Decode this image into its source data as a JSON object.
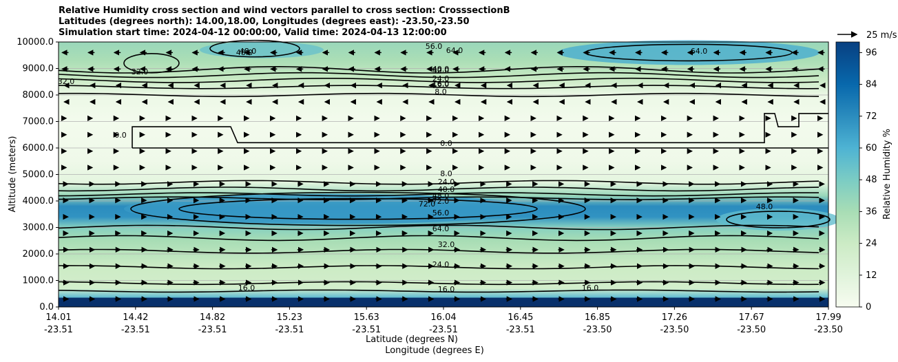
{
  "titles": [
    "Relative Humidity cross section and wind vectors parallel to cross section: CrosssectionB",
    "Latitudes (degrees north): 14.00,18.00, Longitudes (degrees east): -23.50,-23.50",
    "Simulation start time: 2024-04-12 00:00:00, Valid time: 2024-04-13 12:00:00"
  ],
  "chart_data": {
    "type": "filled contour cross section with wind vectors",
    "xlabel_lat": "Latitude (degrees N)",
    "xlabel_lon": "Longitude (degrees E)",
    "ylabel": "Altitude (meters)",
    "ylim": [
      0,
      10000
    ],
    "y_ticks": [
      "0.0",
      "1000.0",
      "2000.0",
      "3000.0",
      "4000.0",
      "5000.0",
      "6000.0",
      "7000.0",
      "8000.0",
      "9000.0",
      "10000.0"
    ],
    "x_ticks": [
      {
        "lat": "14.01",
        "lon": "-23.51"
      },
      {
        "lat": "14.42",
        "lon": "-23.51"
      },
      {
        "lat": "14.82",
        "lon": "-23.51"
      },
      {
        "lat": "15.23",
        "lon": "-23.51"
      },
      {
        "lat": "15.63",
        "lon": "-23.51"
      },
      {
        "lat": "16.04",
        "lon": "-23.51"
      },
      {
        "lat": "16.45",
        "lon": "-23.51"
      },
      {
        "lat": "16.85",
        "lon": "-23.50"
      },
      {
        "lat": "17.26",
        "lon": "-23.50"
      },
      {
        "lat": "17.67",
        "lon": "-23.50"
      },
      {
        "lat": "17.99",
        "lon": "-23.50"
      }
    ],
    "grid": "horizontal",
    "colorbar": {
      "label": "Relative Humidity %",
      "range": [
        0,
        100
      ],
      "ticks": [
        "0",
        "12",
        "24",
        "36",
        "48",
        "60",
        "72",
        "84",
        "96"
      ],
      "colormap": "GnBu"
    },
    "quiver_key": "25 m/s",
    "contour_levels": [
      "0.0",
      "8.0",
      "16.0",
      "24.0",
      "32.0",
      "40.0",
      "48.0",
      "56.0",
      "64.0",
      "72.0"
    ],
    "rh_profile": [
      {
        "altitude": 0,
        "rh": 90
      },
      {
        "altitude": 300,
        "rh": 60
      },
      {
        "altitude": 700,
        "rh": 20
      },
      {
        "altitude": 1500,
        "rh": 24
      },
      {
        "altitude": 2000,
        "rh": 30
      },
      {
        "altitude": 2500,
        "rh": 36
      },
      {
        "altitude": 3000,
        "rh": 45
      },
      {
        "altitude": 3400,
        "rh": 70
      },
      {
        "altitude": 3800,
        "rh": 72
      },
      {
        "altitude": 4200,
        "rh": 40
      },
      {
        "altitude": 4700,
        "rh": 10
      },
      {
        "altitude": 5500,
        "rh": 4
      },
      {
        "altitude": 7000,
        "rh": 2
      },
      {
        "altitude": 8000,
        "rh": 6
      },
      {
        "altitude": 8600,
        "rh": 25
      },
      {
        "altitude": 9300,
        "rh": 35
      },
      {
        "altitude": 10000,
        "rh": 40
      }
    ],
    "contour_labels": [
      "0.0",
      "8.0",
      "8.0",
      "16.0",
      "24.0",
      "32.0",
      "40.0",
      "48.0",
      "56.0",
      "64.0",
      "72.0",
      "24.0",
      "40.0",
      "48.0",
      "56.0",
      "64.0",
      "40.0",
      "32.0",
      "24.0",
      "16.0",
      "16.0",
      "48.0",
      "48.0",
      "64.0",
      "72.0",
      "0.0",
      "32.0",
      "32.0",
      "16.0",
      "16.0"
    ]
  }
}
